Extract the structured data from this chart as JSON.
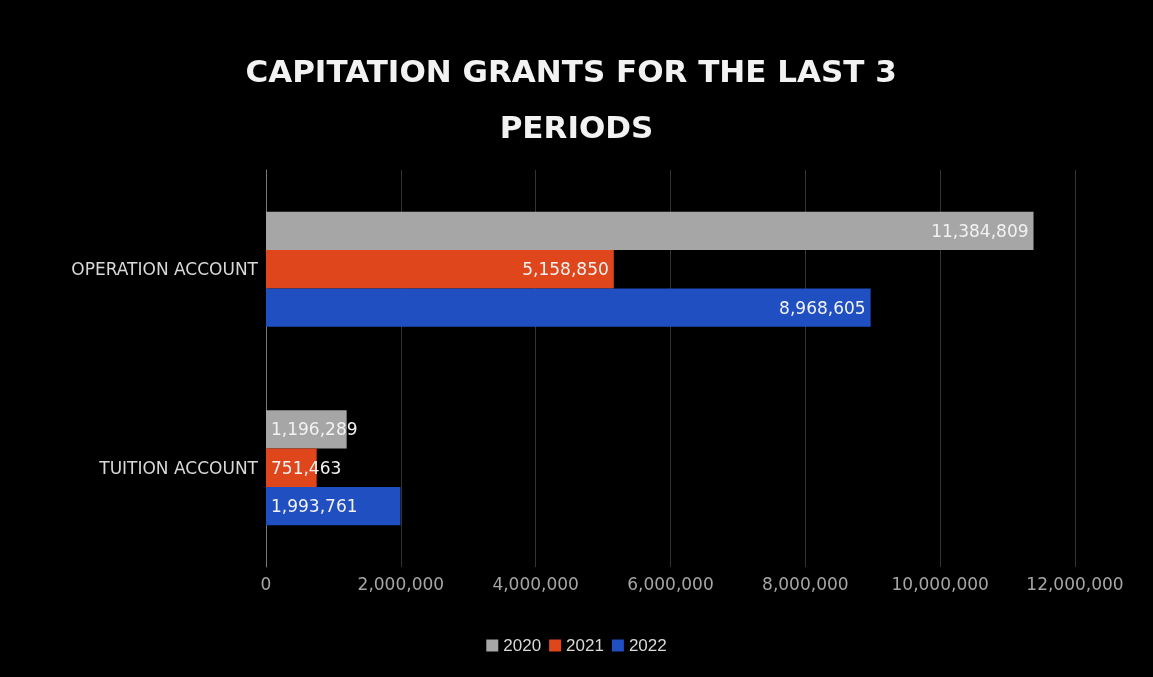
{
  "chart_data": {
    "type": "bar",
    "orientation": "horizontal",
    "title": "CAPITATION GRANTS FOR THE LAST 3 PERIODS",
    "categories": [
      "OPERATION ACCOUNT",
      "TUITION ACCOUNT"
    ],
    "series": [
      {
        "name": "2020",
        "color": "#a6a6a6",
        "values": [
          11384809,
          1196289
        ],
        "value_labels": [
          "11,384,809",
          "1,196,289"
        ]
      },
      {
        "name": "2021",
        "color": "#e0461b",
        "values": [
          5158850,
          751463
        ],
        "value_labels": [
          "5,158,850",
          "751,463"
        ]
      },
      {
        "name": "2022",
        "color": "#1f4fc0",
        "values": [
          8968605,
          1993761
        ],
        "value_labels": [
          "8,968,605",
          "1,993,761"
        ]
      }
    ],
    "xlim": [
      0,
      12000000
    ],
    "xticks": [
      0,
      {
        "value": 2000000,
        "label": "2,000,000"
      },
      {
        "value": 4000000,
        "label": "4,000,000"
      },
      {
        "value": 6000000,
        "label": "6,000,000"
      },
      {
        "value": 8000000,
        "label": "8,000,000"
      },
      {
        "value": 10000000,
        "label": "10,000,000"
      },
      {
        "value": 12000000,
        "label": "12,000,000"
      }
    ],
    "grid": "x",
    "legend": "bottom"
  }
}
